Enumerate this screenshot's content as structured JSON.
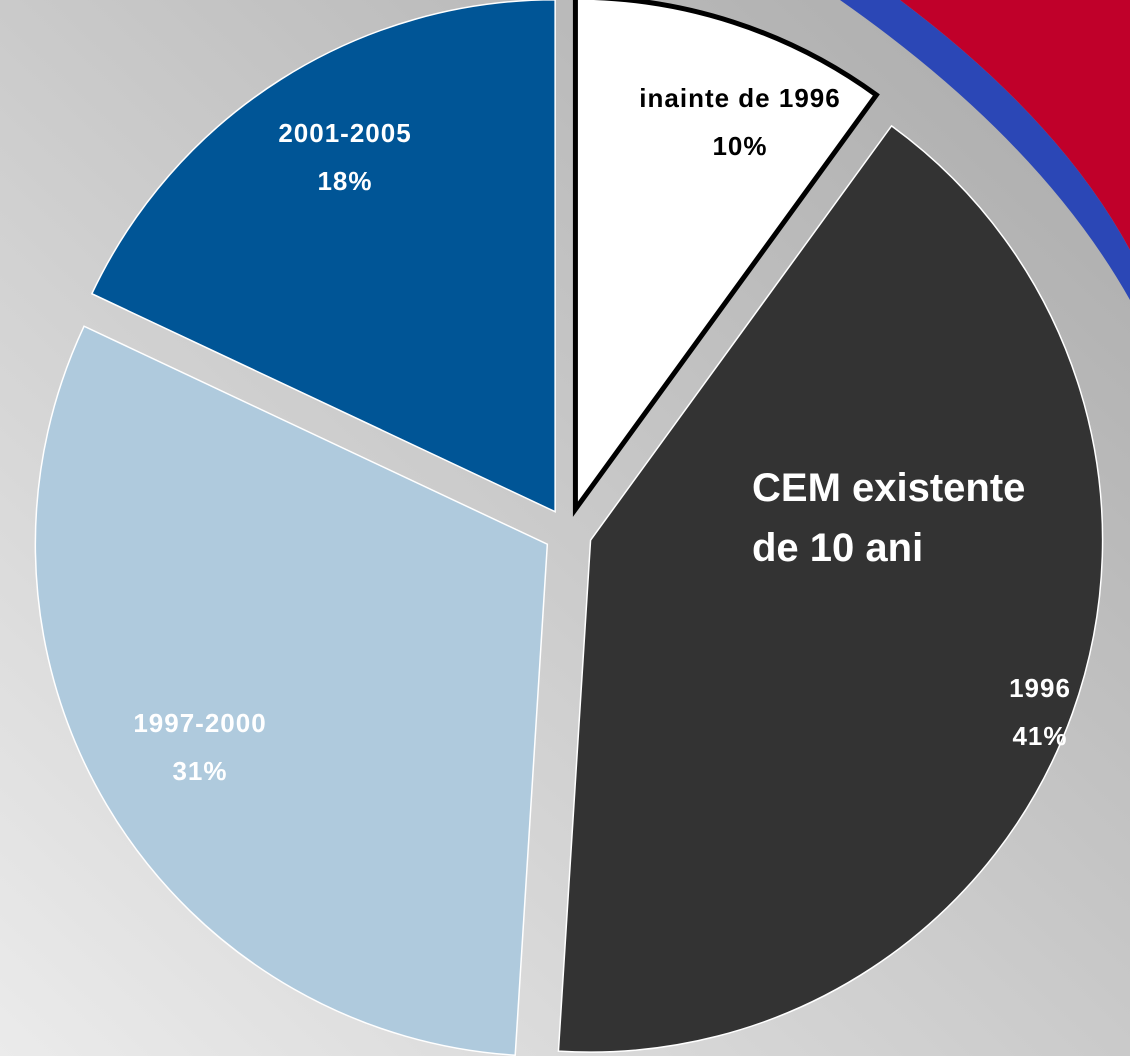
{
  "chart_data": {
    "type": "pie",
    "categories": [
      "inainte de 1996",
      "1996",
      "1997-2000",
      "2001-2005"
    ],
    "values": [
      10,
      41,
      31,
      18
    ],
    "value_labels": [
      "10%",
      "41%",
      "31%",
      "18%"
    ],
    "colors": [
      "#ffffff",
      "#333333",
      "#afcadd",
      "#005596"
    ],
    "annotation": "CEM existente de 10 ani"
  }
}
